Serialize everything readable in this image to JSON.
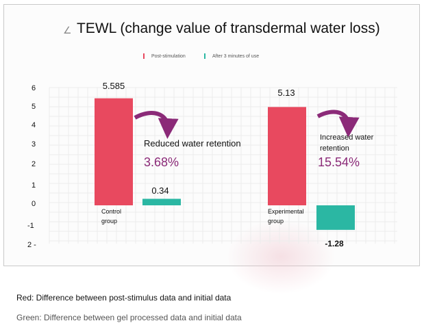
{
  "chart_data": {
    "type": "bar",
    "title": "TEWL (change value of transdermal water loss)",
    "categories": [
      "Control group",
      "Experimental group"
    ],
    "series": [
      {
        "name": "Post-stimulation",
        "color": "#e8495f",
        "values": [
          5.585,
          5.13
        ]
      },
      {
        "name": "After 3 minutes of use",
        "color": "#2bb7a3",
        "values": [
          0.34,
          -1.28
        ]
      }
    ],
    "data_labels": [
      "5.585",
      "5.13",
      "0.34",
      "-1.28"
    ],
    "ytick_labels": [
      "6",
      "5",
      "4",
      "3",
      "2",
      "1",
      "0",
      "-1",
      "2 -"
    ],
    "ylim": [
      -2,
      6
    ],
    "grid": true,
    "legend": "top-center",
    "annotations": [
      {
        "text": "Reduced water retention",
        "value": "3.68%"
      },
      {
        "text": "Increased water retention",
        "value": "15.54%"
      }
    ],
    "annotation_color": "#8b2a78"
  },
  "captions": {
    "red": "Red: Difference between post-stimulus data and initial data",
    "green": "Green: Difference between gel processed data and initial data"
  }
}
